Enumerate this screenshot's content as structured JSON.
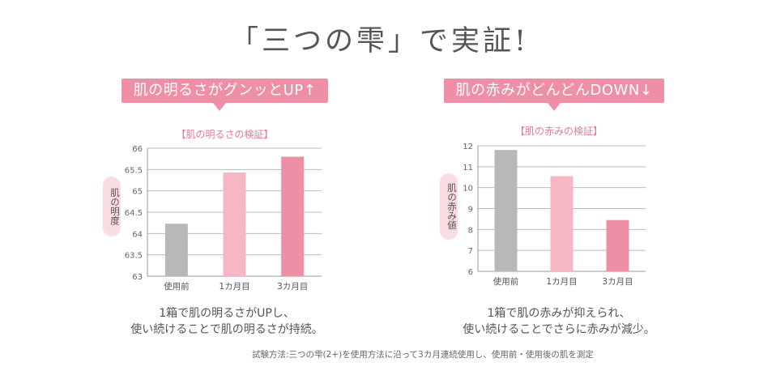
{
  "title": "「三つの雫」で実証!",
  "footnote": "試験方法:三つの雫(2+)を使用方法に沿って3カ月連続使用し、使用前・使用後の肌を測定",
  "colors": {
    "before": "#b7b8ba",
    "month1": "#f6b6c3",
    "month3": "#ef8fa5",
    "banner": "#ef8fa5",
    "accent": "#e27b95"
  },
  "panels": [
    {
      "banner": "肌の明るさがグンッとUP↑",
      "caption_line1": "1箱で肌の明るさがUPし、",
      "caption_line2": "使い続けることで肌の明るさが持続。"
    },
    {
      "banner": "肌の赤みがどんどんDOWN↓",
      "caption_line1": "1箱で肌の赤みが抑えられ、",
      "caption_line2": "使い続けることでさらに赤みが減少。"
    }
  ],
  "chart_data": [
    {
      "type": "bar",
      "title": "【肌の明るさの検証】",
      "ylabel": "肌の明度",
      "categories": [
        "使用前",
        "1カ月目",
        "3カ月目"
      ],
      "values": [
        64.23,
        65.43,
        65.8
      ],
      "ylim": [
        63,
        66
      ],
      "yticks": [
        "63",
        "63.5",
        "64",
        "64.5",
        "65",
        "65.5",
        "66"
      ],
      "grid": true
    },
    {
      "type": "bar",
      "title": "【肌の赤みの検証】",
      "ylabel": "肌の赤み値",
      "categories": [
        "使用前",
        "1カ月目",
        "3カ月目"
      ],
      "values": [
        11.8,
        10.55,
        8.45
      ],
      "ylim": [
        6,
        12
      ],
      "yticks": [
        "6",
        "7",
        "8",
        "9",
        "10",
        "11",
        "12"
      ],
      "grid": true
    }
  ]
}
